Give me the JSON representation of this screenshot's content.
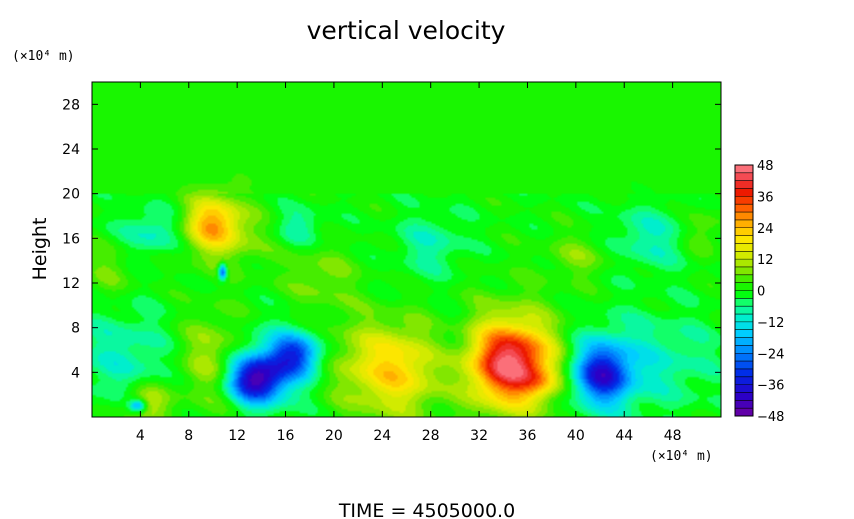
{
  "chart_data": {
    "type": "heatmap",
    "title": "vertical velocity",
    "ylabel": "Height",
    "y_unit_label": "(×10⁴ m)",
    "x_unit_label": "(×10⁴ m)",
    "footer": "TIME  =  4505000.0",
    "xlim": [
      0,
      52
    ],
    "ylim": [
      0,
      30
    ],
    "x_ticks": [
      4,
      8,
      12,
      16,
      20,
      24,
      28,
      32,
      36,
      40,
      44,
      48
    ],
    "y_ticks": [
      4,
      8,
      12,
      16,
      20,
      24,
      28
    ],
    "x_tick_labels": [
      "4",
      "8",
      "12",
      "16",
      "20",
      "24",
      "28",
      "32",
      "36",
      "40",
      "44",
      "48"
    ],
    "y_tick_labels": [
      "4",
      "8",
      "12",
      "16",
      "20",
      "24",
      "28"
    ],
    "colorbar": {
      "min": -48,
      "max": 48,
      "ticks": [
        48,
        36,
        24,
        12,
        0,
        -12,
        -24,
        -36,
        -48
      ],
      "tick_labels": [
        "48",
        "36",
        "24",
        "12",
        "0",
        "−12",
        "−24",
        "−36",
        "−48"
      ],
      "bands": 32
    },
    "field_features": [
      {
        "x": 4.5,
        "y": 1.2,
        "value": 15,
        "sx": 1.3,
        "sy": 1.2
      },
      {
        "x": 3.8,
        "y": 1.0,
        "value": -25,
        "sx": 0.5,
        "sy": 0.4
      },
      {
        "x": 10.0,
        "y": 5.0,
        "value": 13,
        "sx": 2.0,
        "sy": 3.0
      },
      {
        "x": 13.5,
        "y": 3.3,
        "value": -38,
        "sx": 1.6,
        "sy": 1.4
      },
      {
        "x": 16.8,
        "y": 5.6,
        "value": -26,
        "sx": 1.5,
        "sy": 1.3
      },
      {
        "x": 15.0,
        "y": 4.5,
        "value": -12,
        "sx": 3.2,
        "sy": 2.5
      },
      {
        "x": 2.5,
        "y": 5.5,
        "value": -9,
        "sx": 3.0,
        "sy": 3.0
      },
      {
        "x": 25.5,
        "y": 4.2,
        "value": 20,
        "sx": 3.0,
        "sy": 2.8
      },
      {
        "x": 21.0,
        "y": 5.0,
        "value": 6,
        "sx": 3.0,
        "sy": 3.0
      },
      {
        "x": 29.5,
        "y": 5.0,
        "value": -9,
        "sx": 1.8,
        "sy": 3.0
      },
      {
        "x": 34.7,
        "y": 4.8,
        "value": 34,
        "sx": 2.3,
        "sy": 2.3
      },
      {
        "x": 34.5,
        "y": 5.0,
        "value": 14,
        "sx": 3.6,
        "sy": 3.6
      },
      {
        "x": 37.0,
        "y": 3.0,
        "value": 8,
        "sx": 1.2,
        "sy": 0.9
      },
      {
        "x": 42.2,
        "y": 3.8,
        "value": -30,
        "sx": 1.6,
        "sy": 1.8
      },
      {
        "x": 42.0,
        "y": 4.5,
        "value": -10,
        "sx": 3.0,
        "sy": 3.0
      },
      {
        "x": 48.0,
        "y": 5.0,
        "value": -7,
        "sx": 3.0,
        "sy": 3.0
      },
      {
        "x": 10.0,
        "y": 17.5,
        "value": 22,
        "sx": 1.6,
        "sy": 1.6
      },
      {
        "x": 11.0,
        "y": 16.0,
        "value": 8,
        "sx": 3.0,
        "sy": 2.0
      },
      {
        "x": 10.8,
        "y": 13.0,
        "value": -32,
        "sx": 0.25,
        "sy": 0.5
      },
      {
        "x": 5.0,
        "y": 16.5,
        "value": -11,
        "sx": 2.0,
        "sy": 1.5
      },
      {
        "x": 17.0,
        "y": 17.0,
        "value": -9,
        "sx": 1.5,
        "sy": 1.2
      },
      {
        "x": 19.0,
        "y": 12.5,
        "value": 7,
        "sx": 2.0,
        "sy": 2.0
      },
      {
        "x": 28.0,
        "y": 15.5,
        "value": -8,
        "sx": 2.0,
        "sy": 2.0
      },
      {
        "x": 40.5,
        "y": 14.5,
        "value": 7,
        "sx": 2.0,
        "sy": 1.5
      },
      {
        "x": 50.5,
        "y": 16.5,
        "value": 7,
        "sx": 1.2,
        "sy": 1.5
      },
      {
        "x": 46.0,
        "y": 16.0,
        "value": -9,
        "sx": 2.5,
        "sy": 2.0
      },
      {
        "x": 1.5,
        "y": 13.5,
        "value": 6,
        "sx": 1.5,
        "sy": 2.0
      }
    ]
  }
}
